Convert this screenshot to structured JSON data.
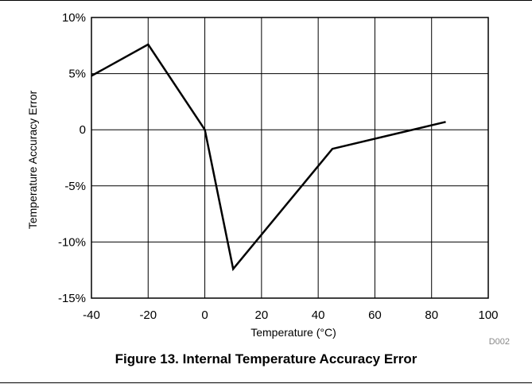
{
  "figure": {
    "caption": "Figure 13. Internal Temperature Accuracy Error",
    "id": "D002"
  },
  "chart_data": {
    "type": "line",
    "xlabel": "Temperature (°C)",
    "ylabel": "Temperature Accuracy Error",
    "xlim": [
      -40,
      100
    ],
    "ylim": [
      -15,
      10
    ],
    "x_ticks": [
      -40,
      -20,
      0,
      20,
      40,
      60,
      80,
      100
    ],
    "x_tick_labels": [
      "-40",
      "-20",
      "0",
      "20",
      "40",
      "60",
      "80",
      "100"
    ],
    "y_ticks": [
      10,
      5,
      0,
      -5,
      -10,
      -15
    ],
    "y_tick_labels": [
      "10%",
      "5%",
      "0",
      "-5%",
      "-10%",
      "-15%"
    ],
    "grid": true,
    "series": [
      {
        "x": [
          -40,
          -20,
          0,
          10,
          45,
          85
        ],
        "y": [
          4.8,
          7.6,
          0,
          -12.4,
          -1.7,
          0.7
        ]
      }
    ],
    "colors": {
      "line": "#000000",
      "grid": "#000000",
      "frame": "#000000"
    }
  }
}
